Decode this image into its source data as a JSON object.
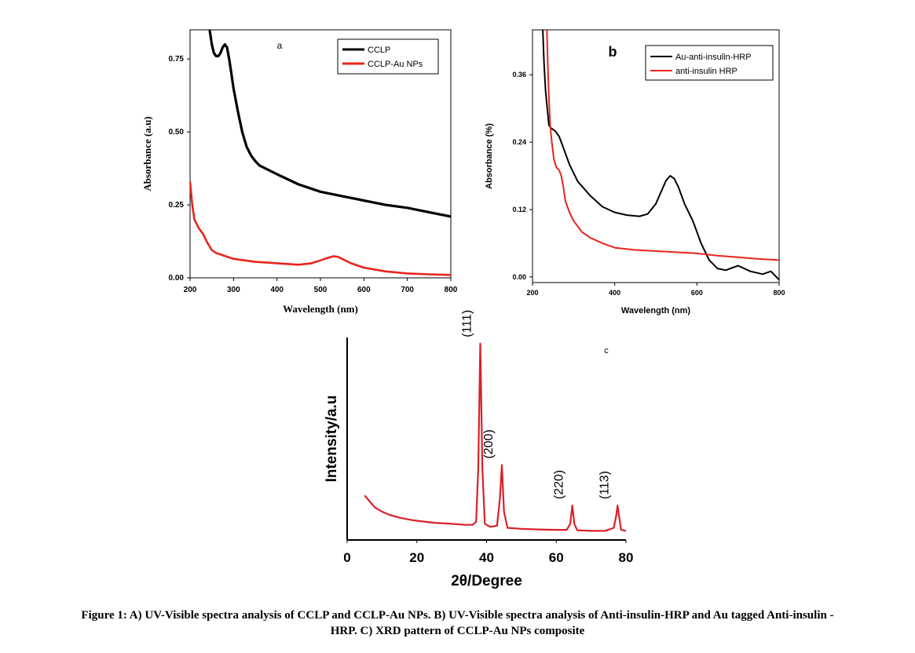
{
  "figure": {
    "caption_line1": "Figure 1: A) UV-Visible spectra analysis of CCLP and CCLP-Au NPs. B) UV-Visible spectra analysis of Anti-insulin-HRP and Au tagged Anti-insulin -",
    "caption_line2": "HRP. C) XRD pattern of CCLP-Au NPs composite"
  },
  "chart_data": [
    {
      "type": "line",
      "panel_label": "a",
      "xlabel": "Wavelength (nm)",
      "ylabel": "Absorbance (a.u)",
      "xlim": [
        200,
        800
      ],
      "ylim": [
        0,
        0.85
      ],
      "xticks": [
        200,
        300,
        400,
        500,
        600,
        700,
        800
      ],
      "yticks": [
        0.0,
        0.25,
        0.5,
        0.75
      ],
      "ytick_labels": [
        "0.00",
        "0.25",
        "0.50",
        "0.75"
      ],
      "legend_position": "top-right",
      "series": [
        {
          "name": "CCLP",
          "color": "#000000",
          "x": [
            245,
            250,
            255,
            260,
            265,
            270,
            275,
            280,
            285,
            290,
            295,
            300,
            310,
            320,
            330,
            340,
            350,
            360,
            380,
            400,
            450,
            500,
            550,
            600,
            650,
            700,
            750,
            800
          ],
          "y": [
            0.85,
            0.8,
            0.77,
            0.76,
            0.76,
            0.77,
            0.79,
            0.8,
            0.79,
            0.75,
            0.7,
            0.65,
            0.57,
            0.5,
            0.45,
            0.42,
            0.4,
            0.385,
            0.37,
            0.355,
            0.32,
            0.295,
            0.28,
            0.265,
            0.25,
            0.24,
            0.225,
            0.21
          ]
        },
        {
          "name": "CCLP-Au NPs",
          "color": "#e8241c",
          "x": [
            200,
            205,
            210,
            220,
            230,
            240,
            250,
            260,
            280,
            300,
            350,
            400,
            450,
            480,
            500,
            520,
            530,
            540,
            550,
            570,
            600,
            650,
            700,
            750,
            800
          ],
          "y": [
            0.33,
            0.25,
            0.2,
            0.17,
            0.15,
            0.12,
            0.095,
            0.085,
            0.075,
            0.065,
            0.055,
            0.05,
            0.045,
            0.05,
            0.06,
            0.07,
            0.074,
            0.072,
            0.065,
            0.05,
            0.035,
            0.022,
            0.015,
            0.012,
            0.01
          ]
        }
      ]
    },
    {
      "type": "line",
      "panel_label": "b",
      "xlabel": "Wavelength (nm)",
      "ylabel": "Absorbance (%)",
      "xlim": [
        200,
        800
      ],
      "ylim": [
        -0.01,
        0.44
      ],
      "xticks": [
        200,
        400,
        600,
        800
      ],
      "yticks": [
        0.0,
        0.12,
        0.24,
        0.36
      ],
      "ytick_labels": [
        "0.00",
        "0.12",
        "0.24",
        "0.36"
      ],
      "legend_position": "top-right",
      "series": [
        {
          "name": "Au-anti-insulin-HRP",
          "color": "#000000",
          "x": [
            225,
            228,
            232,
            236,
            240,
            245,
            255,
            265,
            275,
            290,
            310,
            340,
            370,
            400,
            430,
            460,
            480,
            500,
            515,
            525,
            535,
            545,
            555,
            570,
            590,
            610,
            630,
            650,
            670,
            700,
            730,
            760,
            780,
            800
          ],
          "y": [
            0.44,
            0.38,
            0.33,
            0.3,
            0.27,
            0.265,
            0.26,
            0.25,
            0.23,
            0.2,
            0.17,
            0.145,
            0.125,
            0.115,
            0.11,
            0.108,
            0.112,
            0.13,
            0.155,
            0.172,
            0.18,
            0.175,
            0.16,
            0.13,
            0.1,
            0.06,
            0.03,
            0.015,
            0.012,
            0.02,
            0.01,
            0.005,
            0.01,
            -0.005
          ]
        },
        {
          "name": "anti-insulin HRP",
          "color": "#e8241c",
          "x": [
            235,
            237,
            240,
            243,
            247,
            252,
            258,
            265,
            270,
            275,
            280,
            290,
            300,
            320,
            340,
            370,
            400,
            450,
            500,
            550,
            600,
            650,
            700,
            750,
            800
          ],
          "y": [
            0.44,
            0.38,
            0.32,
            0.27,
            0.24,
            0.21,
            0.195,
            0.19,
            0.18,
            0.16,
            0.135,
            0.115,
            0.1,
            0.08,
            0.07,
            0.06,
            0.052,
            0.048,
            0.046,
            0.044,
            0.042,
            0.038,
            0.035,
            0.032,
            0.03
          ]
        }
      ]
    },
    {
      "type": "line",
      "panel_label": "c",
      "xlabel": "2θ/Degree",
      "ylabel": "Intensity/a.u",
      "xlim": [
        0,
        80
      ],
      "ylim": [
        0,
        100
      ],
      "xticks": [
        0,
        20,
        40,
        60,
        80
      ],
      "grid": false,
      "annotations": [
        {
          "label": "(111)",
          "x": 38.2
        },
        {
          "label": "(200)",
          "x": 44.4
        },
        {
          "label": "(220)",
          "x": 64.6
        },
        {
          "label": "(113)",
          "x": 77.6
        }
      ],
      "series": [
        {
          "name": "CCLP-Au NPs",
          "color": "#d92027",
          "x": [
            5,
            6,
            7,
            8,
            10,
            12,
            15,
            18,
            20,
            25,
            30,
            34,
            36,
            37,
            37.6,
            38.2,
            38.8,
            39.5,
            41,
            43,
            43.8,
            44.4,
            45,
            46,
            50,
            55,
            60,
            63,
            64,
            64.6,
            65.2,
            66,
            70,
            74,
            76.5,
            77.2,
            77.6,
            78,
            78.6,
            80
          ],
          "y": [
            22,
            20,
            18,
            16,
            14,
            12.5,
            11,
            10,
            9.5,
            8.5,
            8,
            7.5,
            7.5,
            9,
            35,
            97,
            35,
            8,
            6.5,
            7,
            20,
            37,
            14,
            6,
            5.5,
            5.2,
            5,
            5,
            8,
            17,
            8,
            4.8,
            4.5,
            4.5,
            6,
            12,
            17,
            12,
            5,
            4.5
          ]
        }
      ]
    }
  ]
}
